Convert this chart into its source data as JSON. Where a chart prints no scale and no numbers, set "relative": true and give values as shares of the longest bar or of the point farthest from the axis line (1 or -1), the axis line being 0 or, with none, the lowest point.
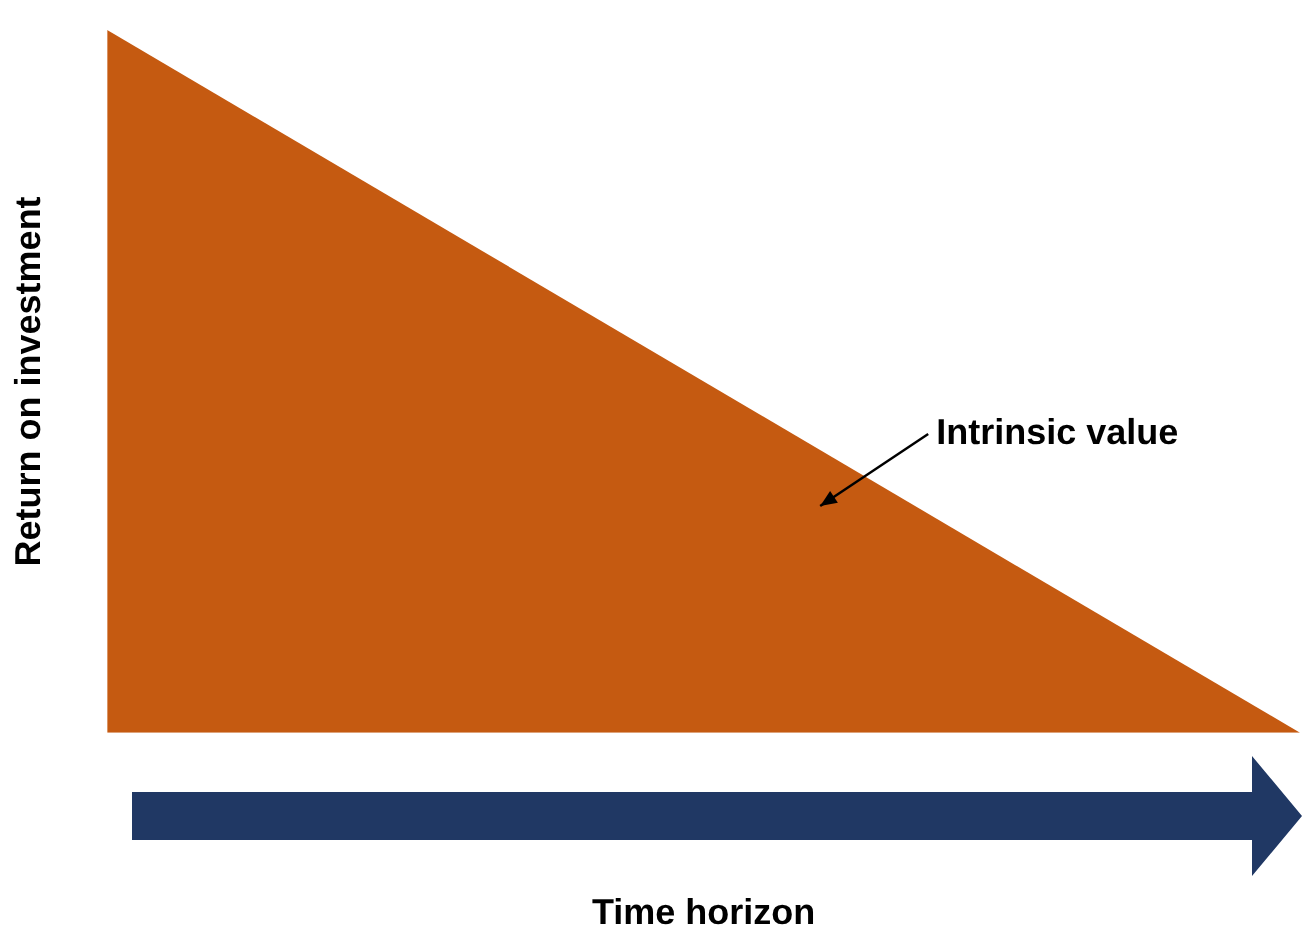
{
  "chart_data": {
    "type": "area",
    "relative": true,
    "categories": [
      null,
      null
    ],
    "series": [
      {
        "color": "#c55a11",
        "values": [
          1,
          0
        ]
      }
    ],
    "xlabel": "Time horizon",
    "ylabel": "Return on investment",
    "annotations": [
      "Intrinsic value"
    ],
    "grid": false,
    "legend": false
  }
}
